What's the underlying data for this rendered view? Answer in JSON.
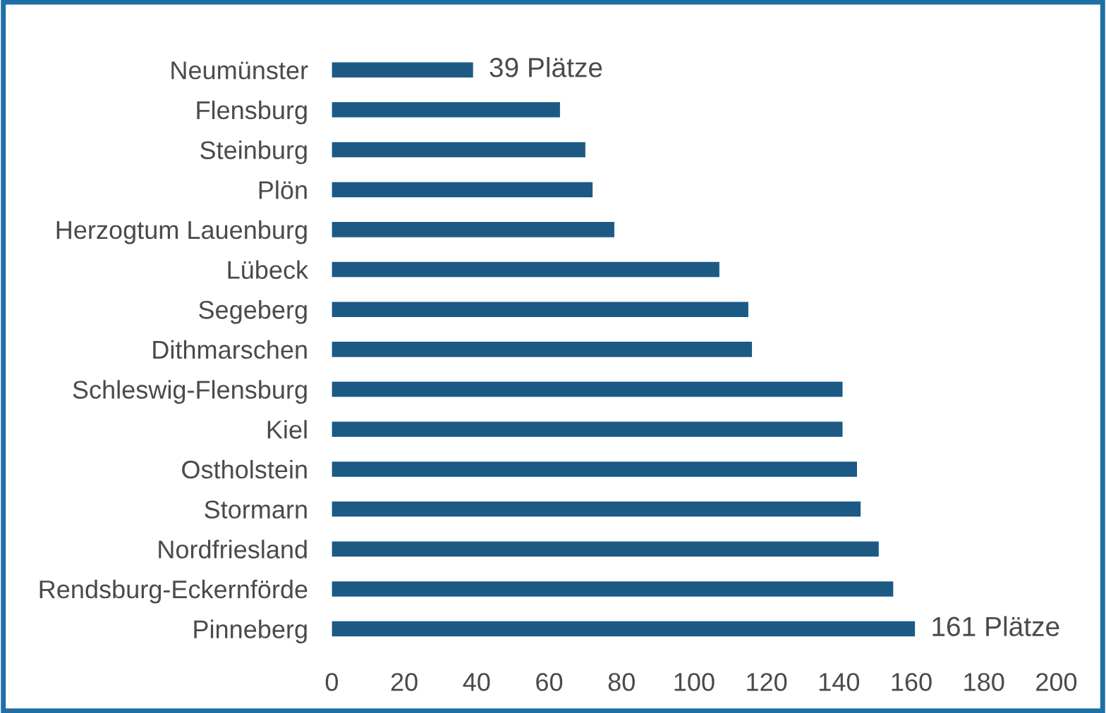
{
  "chart_data": {
    "type": "bar",
    "orientation": "horizontal",
    "categories": [
      "Neumünster",
      "Flensburg",
      "Steinburg",
      "Plön",
      "Herzogtum Lauenburg",
      "Lübeck",
      "Segeberg",
      "Dithmarschen",
      "Schleswig-Flensburg",
      "Kiel",
      "Ostholstein",
      "Stormarn",
      "Nordfriesland",
      "Rendsburg-Eckernförde",
      "Pinneberg"
    ],
    "values": [
      39,
      63,
      70,
      72,
      78,
      107,
      115,
      116,
      141,
      141,
      145,
      146,
      151,
      155,
      161
    ],
    "value_labels": [
      "39 Plätze",
      null,
      null,
      null,
      null,
      null,
      null,
      null,
      null,
      null,
      null,
      null,
      null,
      null,
      "161 Plätze"
    ],
    "color": "#1c5a85",
    "xlim": [
      0,
      200
    ],
    "xticks": [
      0,
      20,
      40,
      60,
      80,
      100,
      120,
      140,
      160,
      180,
      200
    ],
    "grid": false,
    "legend": false
  }
}
